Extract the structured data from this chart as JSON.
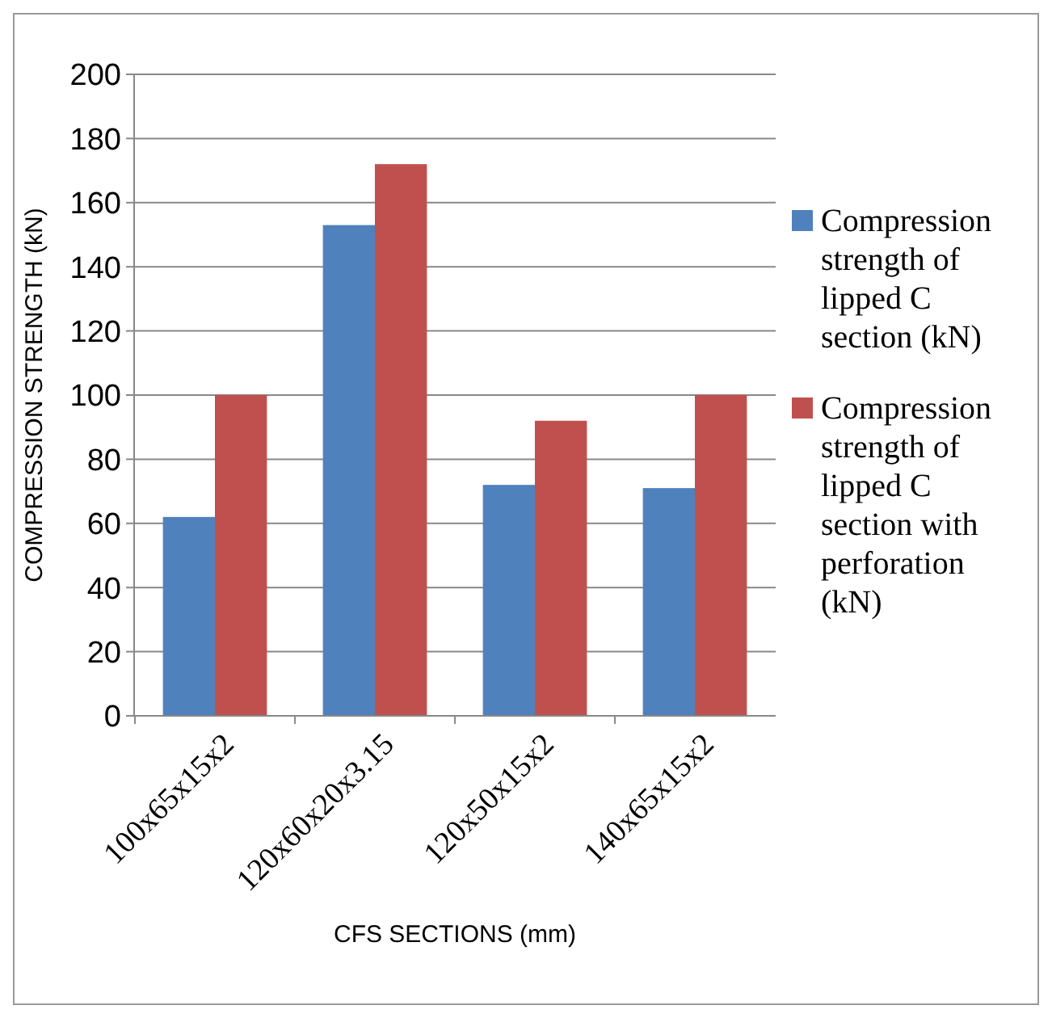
{
  "chart_data": {
    "type": "bar",
    "xlabel": "CFS SECTIONS  (mm)",
    "ylabel": "COMPRESSION STRENGTH (kN)",
    "categories": [
      "100x65x15x2",
      "120x60x20x3.15",
      "120x50x15x2",
      "140x65x15x2"
    ],
    "series": [
      {
        "name": "Compression strength of lipped C section (kN)",
        "color": "#4f81bd",
        "values": [
          62,
          153,
          72,
          71
        ]
      },
      {
        "name": "Compression strength of lipped C section with perforation (kN)",
        "color": "#c0504d",
        "values": [
          100,
          172,
          92,
          100
        ]
      }
    ],
    "ylim": [
      0,
      200
    ],
    "yticks": [
      0,
      20,
      40,
      60,
      80,
      100,
      120,
      140,
      160,
      180,
      200
    ],
    "grid": "y",
    "legend": "right"
  }
}
